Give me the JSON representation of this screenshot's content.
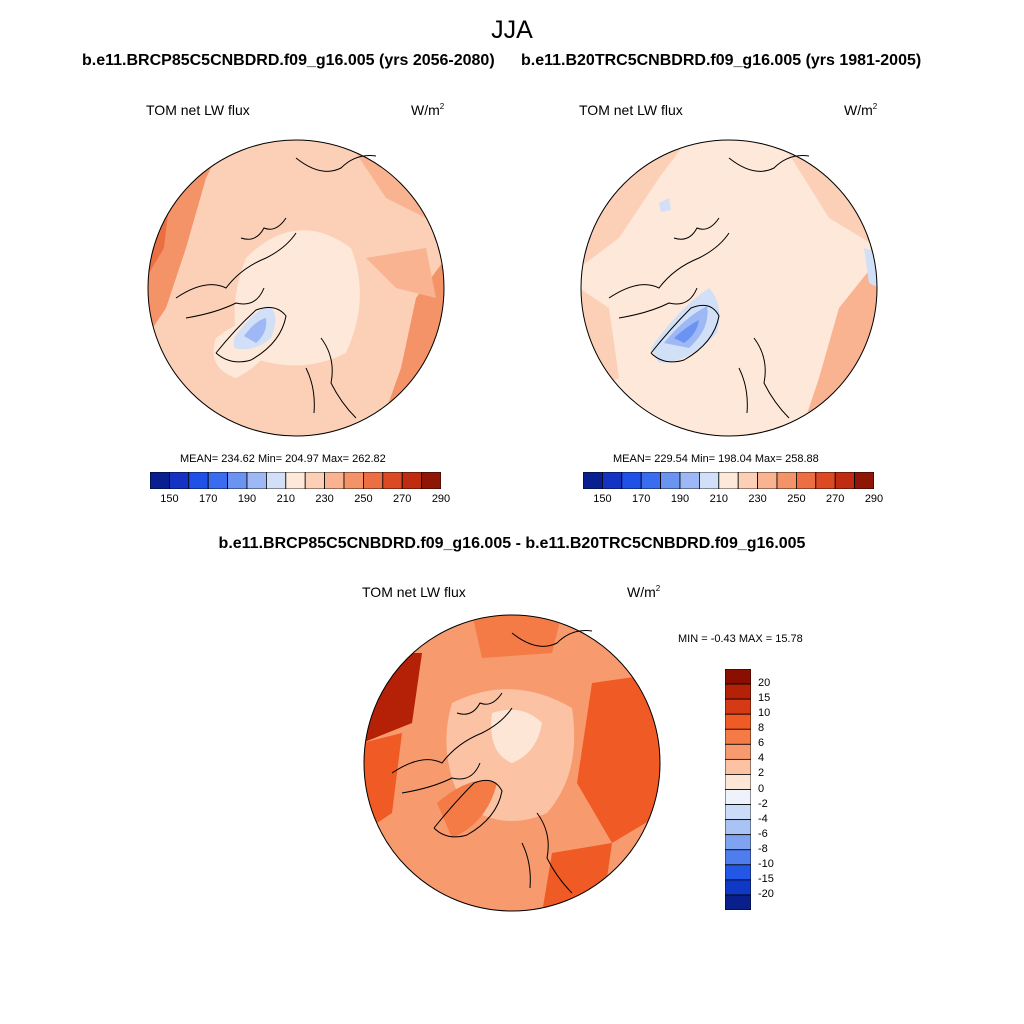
{
  "figure": {
    "season": "JJA",
    "case_a_title": "b.e11.BRCP85C5CNBDRD.f09_g16.005 (yrs 2056-2080)",
    "case_b_title": "b.e11.B20TRC5CNBDRD.f09_g16.005 (yrs 1981-2005)",
    "diff_title": "b.e11.BRCP85C5CNBDRD.f09_g16.005 - b.e11.B20TRC5CNBDRD.f09_g16.005"
  },
  "panels": {
    "left": {
      "label": "TOM net LW flux",
      "units_base": "W/m",
      "units_exp": "2",
      "stats": "MEAN= 234.62  Min= 204.97  Max= 262.82"
    },
    "right": {
      "label": "TOM net LW flux",
      "units_base": "W/m",
      "units_exp": "2",
      "stats": "MEAN= 229.54  Min= 198.04  Max= 258.88"
    },
    "diff": {
      "label": "TOM net LW flux",
      "units_base": "W/m",
      "units_exp": "2",
      "stats": "MIN =  -0.43 MAX =  15.78"
    }
  },
  "colorbar_horizontal": {
    "tick_labels": [
      "150",
      "170",
      "190",
      "210",
      "230",
      "250",
      "270",
      "290"
    ],
    "colors": [
      "#0a1f8f",
      "#1433c2",
      "#1f50e8",
      "#3a6cf0",
      "#6b94f2",
      "#9db8f5",
      "#d2e0f7",
      "#fde8d9",
      "#fcd0b6",
      "#f9b390",
      "#f49268",
      "#ec6f44",
      "#dc4a24",
      "#c02c12",
      "#8f1606"
    ]
  },
  "colorbar_vertical": {
    "tick_labels": [
      "20",
      "15",
      "10",
      "8",
      "6",
      "4",
      "2",
      "0",
      "-2",
      "-4",
      "-6",
      "-8",
      "-10",
      "-15",
      "-20"
    ],
    "colors": [
      "#8b0f00",
      "#b52106",
      "#d63a14",
      "#f05a24",
      "#f47b45",
      "#f79a6e",
      "#fbc2a3",
      "#fde6d6",
      "#eef3fb",
      "#cadcf7",
      "#a9c3f4",
      "#7fa3f0",
      "#4f7ded",
      "#2357e6",
      "#0f38c4",
      "#081f8c"
    ]
  }
}
